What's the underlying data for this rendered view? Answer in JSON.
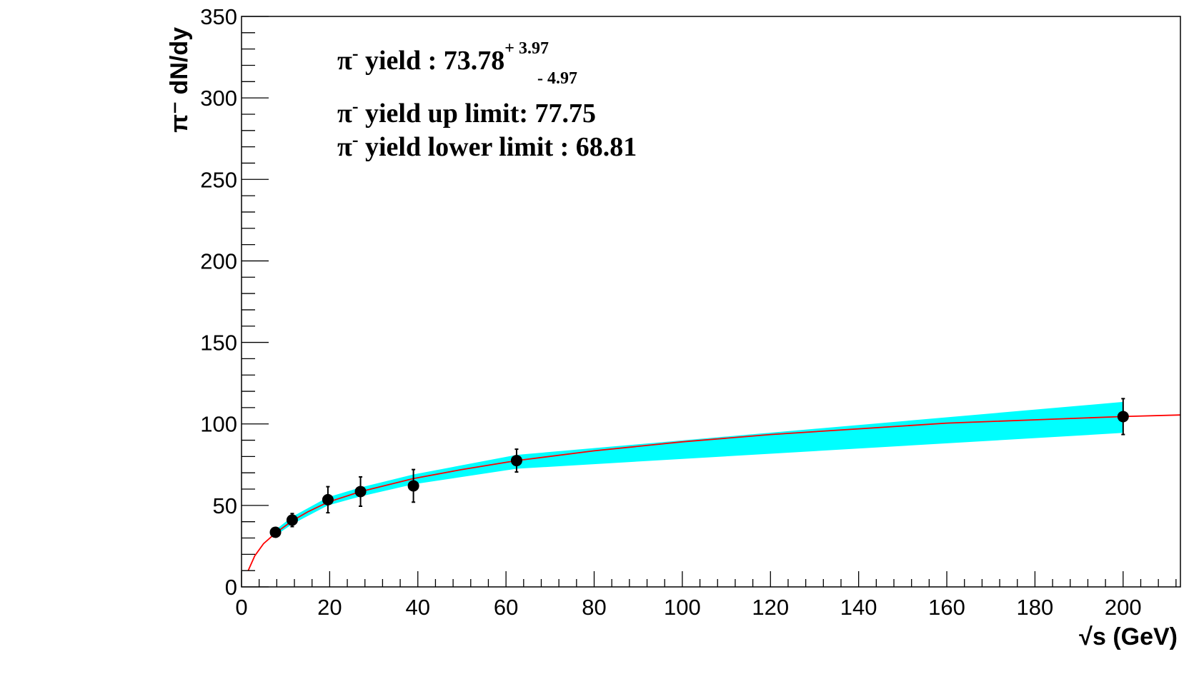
{
  "chart_data": {
    "type": "scatter",
    "xlabel": "√s (GeV)",
    "ylabel": "π⁻ dN/dy",
    "xlim": [
      0,
      213
    ],
    "ylim": [
      0,
      350
    ],
    "x_ticks": [
      "0",
      "20",
      "40",
      "60",
      "80",
      "100",
      "120",
      "140",
      "160",
      "180",
      "200"
    ],
    "y_ticks": [
      "0",
      "50",
      "100",
      "150",
      "200",
      "250",
      "300",
      "350"
    ],
    "grid": false,
    "series": [
      {
        "kind": "points",
        "color": "#000000",
        "x": [
          7.7,
          11.5,
          19.6,
          27,
          39,
          62.4,
          200
        ],
        "y": [
          33.5,
          41,
          53.5,
          58.5,
          62,
          77.5,
          104.5
        ],
        "err_low": [
          2.5,
          4,
          8,
          9,
          10,
          7,
          11
        ],
        "err_high": [
          2.5,
          4,
          8,
          9,
          10,
          7,
          11
        ]
      },
      {
        "kind": "fit-curve",
        "color": "#ff0000",
        "x": [
          1.5,
          3,
          5,
          7.7,
          11.5,
          15,
          19.6,
          27,
          39,
          50,
          62.4,
          80,
          100,
          120,
          140,
          160,
          180,
          200,
          213
        ],
        "y": [
          10,
          19,
          26.5,
          33,
          40.5,
          46,
          52,
          58.5,
          66.5,
          72,
          77.5,
          83.5,
          89,
          93.5,
          97,
          100.5,
          102.5,
          104.5,
          105.5
        ]
      },
      {
        "kind": "band",
        "color": "#00ffff",
        "x": [
          7.7,
          11.5,
          19.6,
          27,
          39,
          62.4,
          200
        ],
        "upper": [
          35,
          43,
          55,
          61,
          69,
          81,
          113.5
        ],
        "lower": [
          31.5,
          38.5,
          50,
          55.5,
          63,
          72.5,
          94.5
        ]
      }
    ],
    "annotations": [
      {
        "prefix": "π",
        "sup": "-",
        "text": " yield : 73.78",
        "sup_extra": "+ 3.97",
        "sub_extra": "- 4.97"
      },
      {
        "prefix": "π",
        "sup": "-",
        "text": " yield up limit: 77.75"
      },
      {
        "prefix": "π",
        "sup": "-",
        "text": " yield lower limit : 68.81"
      }
    ]
  }
}
